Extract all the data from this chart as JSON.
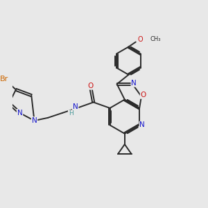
{
  "bg_color": "#e8e8e8",
  "bond_color": "#2a2a2a",
  "bond_width": 1.4,
  "atom_colors": {
    "Br": "#cc6600",
    "N": "#1414cc",
    "O": "#cc1414",
    "C": "#2a2a2a",
    "H": "#4a9a9a"
  },
  "fs": 8.5,
  "fs_small": 7.5,
  "dbo": 0.06
}
